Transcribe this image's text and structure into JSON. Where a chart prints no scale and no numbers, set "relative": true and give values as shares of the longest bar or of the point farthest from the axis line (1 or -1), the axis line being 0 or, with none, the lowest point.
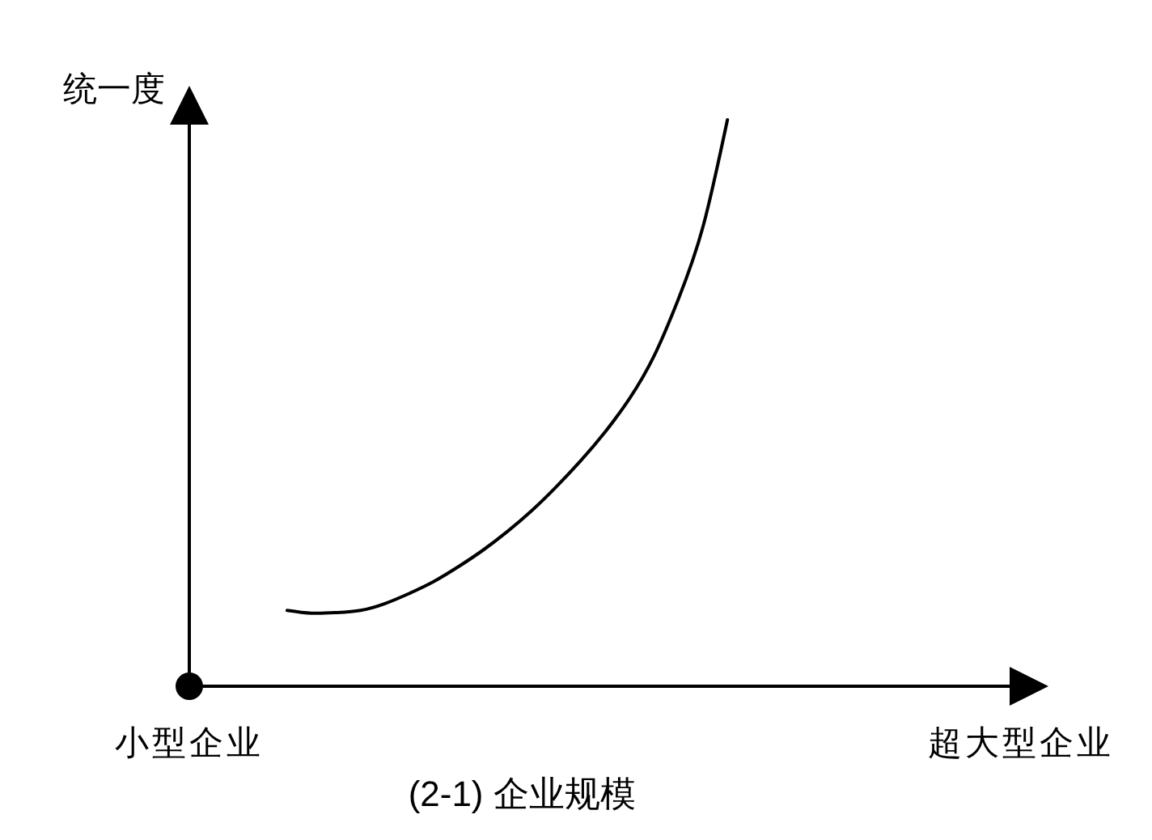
{
  "chart_data": {
    "type": "line",
    "relative": true,
    "xlabel": "(2-1) 企业规模",
    "ylabel": "统一度",
    "categories": [
      "小型企业",
      null,
      null,
      null,
      null,
      null,
      null,
      null,
      null,
      null,
      null,
      null,
      null,
      null,
      null,
      null,
      null,
      null,
      null,
      null,
      null,
      null,
      null,
      null,
      null,
      null,
      null,
      null,
      null,
      null,
      null,
      null,
      null,
      null,
      "超大型企业"
    ],
    "series": [
      {
        "color": "#000000",
        "values": [
          null,
          null,
          null,
          null,
          0.134,
          0.129,
          0.13,
          0.134,
          0.146,
          0.164,
          0.185,
          0.211,
          0.24,
          0.273,
          0.31,
          0.352,
          0.398,
          0.449,
          0.508,
          0.583,
          0.684,
          0.811,
          1,
          null,
          null,
          null,
          null,
          null,
          null,
          null,
          null,
          null,
          null,
          null,
          null
        ]
      }
    ],
    "marker": "none",
    "line_style": "solid"
  }
}
